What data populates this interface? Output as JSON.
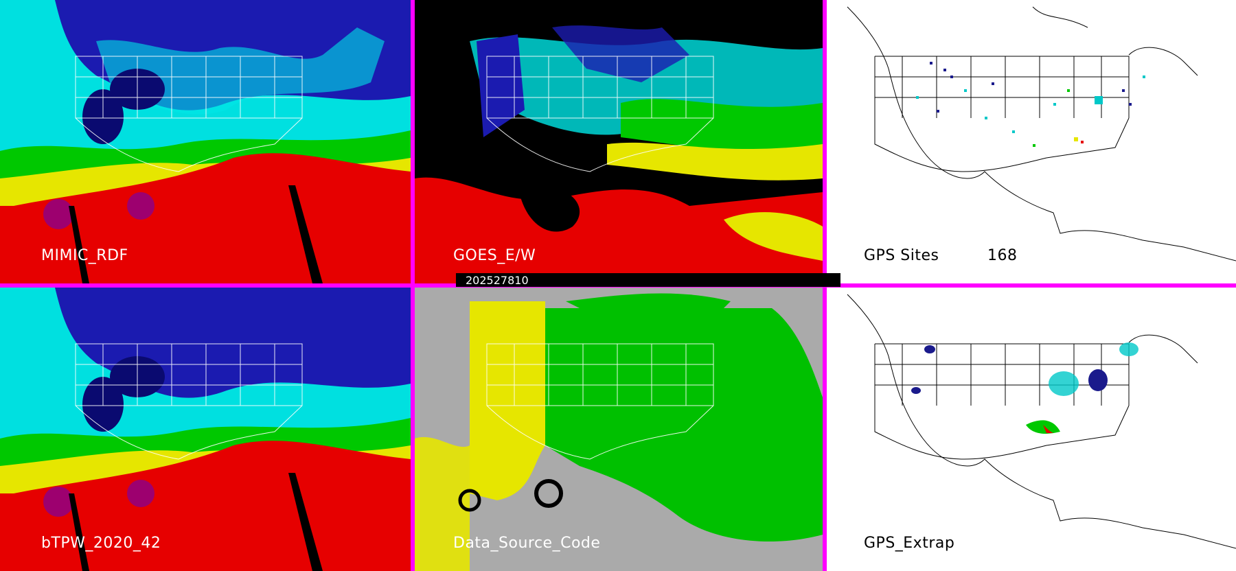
{
  "timestamp": "202527810",
  "panels": [
    {
      "label": "MIMIC_RDF",
      "style": "tpw"
    },
    {
      "label": "GOES_E/W",
      "style": "goes"
    },
    {
      "label": "GPS Sites",
      "count": "168",
      "style": "sites"
    },
    {
      "label": "bTPW_2020_42",
      "style": "tpw"
    },
    {
      "label": "Data_Source_Code",
      "style": "dsc"
    },
    {
      "label": "GPS_Extrap",
      "style": "extrap"
    }
  ],
  "colors": {
    "frame": "#ff00ff",
    "tpw_scale": [
      "#00008c",
      "#1919c8",
      "#00e6e6",
      "#7fffd4",
      "#00c800",
      "#e6e600",
      "#e60000",
      "#800000",
      "#8b008b"
    ],
    "data_source": [
      "#e6e600",
      "#00c000",
      "#aaaaaa",
      "#000000"
    ]
  }
}
